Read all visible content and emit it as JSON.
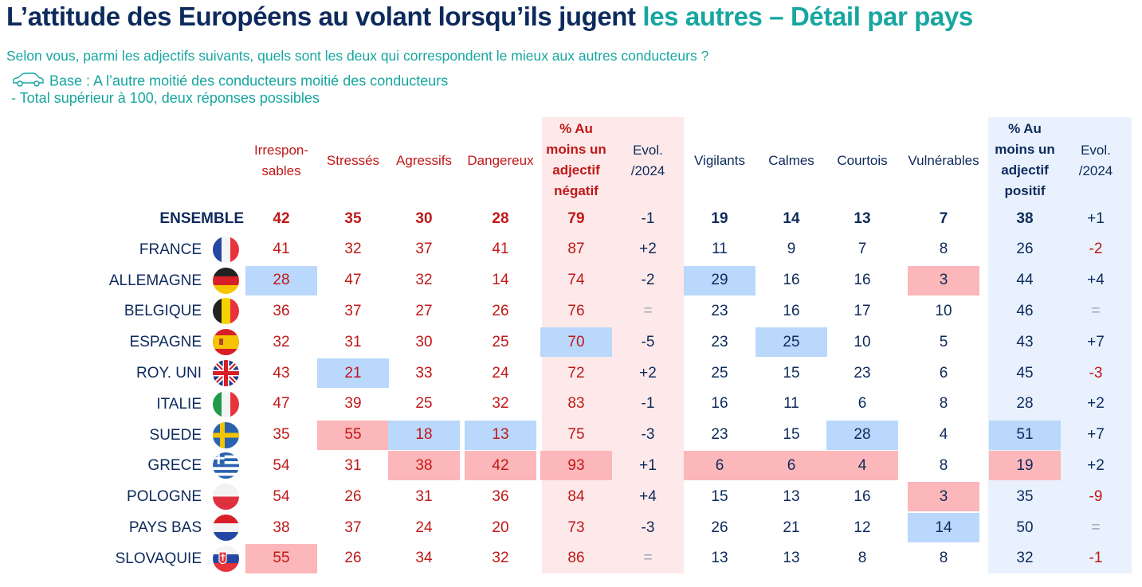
{
  "title": {
    "part1": "L’attitude des Européens au volant lorsqu’ils jugent ",
    "part2": "les autres – Détail par pays"
  },
  "subtitle": "Selon vous, parmi les adjectifs suivants, quels sont les deux qui correspondent le mieux aux autres conducteurs ?",
  "base": "Base : A l’autre moitié des conducteurs moitié des conducteurs",
  "note": "- Total supérieur à 100, deux réponses possibles",
  "colors": {
    "navy": "#0d2a5c",
    "teal": "#17a6a0",
    "red": "#c01818",
    "highlight_blue": "#b9d8fb",
    "highlight_red": "#fbb7b9"
  },
  "headers": {
    "h1": [
      "Irrespon-",
      "sables"
    ],
    "h2": [
      "Stressés"
    ],
    "h3": [
      "Agressifs"
    ],
    "h4": [
      "Dangereux"
    ],
    "h5": [
      "% Au",
      "moins un",
      "adjectif",
      "négatif"
    ],
    "h6": [
      "Evol.",
      "/2024"
    ],
    "h7": [
      "Vigilants"
    ],
    "h8": [
      "Calmes"
    ],
    "h9": [
      "Courtois"
    ],
    "h10": [
      "Vulnérables"
    ],
    "h11": [
      "% Au",
      "moins un",
      "adjectif",
      "positif"
    ],
    "h12": [
      "Evol.",
      "/2024"
    ]
  },
  "chart_data": {
    "type": "table",
    "columns": [
      "Irresponsables",
      "Stressés",
      "Agressifs",
      "Dangereux",
      "% Au moins un adjectif négatif",
      "Evol. /2024",
      "Vigilants",
      "Calmes",
      "Courtois",
      "Vulnérables",
      "% Au moins un adjectif positif",
      "Evol. /2024"
    ],
    "rows": [
      {
        "label": "ENSEMBLE",
        "flag": "",
        "values": [
          "42",
          "35",
          "30",
          "28",
          "79",
          "-1",
          "19",
          "14",
          "13",
          "7",
          "38",
          "+1"
        ]
      },
      {
        "label": "FRANCE",
        "flag": "france-flag-icon",
        "values": [
          "41",
          "32",
          "37",
          "41",
          "87",
          "+2",
          "11",
          "9",
          "7",
          "8",
          "26",
          "-2"
        ]
      },
      {
        "label": "ALLEMAGNE",
        "flag": "germany-flag-icon",
        "values": [
          "28",
          "47",
          "32",
          "14",
          "74",
          "-2",
          "29",
          "16",
          "16",
          "3",
          "44",
          "+4"
        ]
      },
      {
        "label": "BELGIQUE",
        "flag": "belgium-flag-icon",
        "values": [
          "36",
          "37",
          "27",
          "26",
          "76",
          "=",
          "23",
          "16",
          "17",
          "10",
          "46",
          "="
        ]
      },
      {
        "label": "ESPAGNE",
        "flag": "spain-flag-icon",
        "values": [
          "32",
          "31",
          "30",
          "25",
          "70",
          "-5",
          "23",
          "25",
          "10",
          "5",
          "43",
          "+7"
        ]
      },
      {
        "label": "ROY. UNI",
        "flag": "uk-flag-icon",
        "values": [
          "43",
          "21",
          "33",
          "24",
          "72",
          "+2",
          "25",
          "15",
          "23",
          "6",
          "45",
          "-3"
        ]
      },
      {
        "label": "ITALIE",
        "flag": "italy-flag-icon",
        "values": [
          "47",
          "39",
          "25",
          "32",
          "83",
          "-1",
          "16",
          "11",
          "6",
          "8",
          "28",
          "+2"
        ]
      },
      {
        "label": "SUEDE",
        "flag": "sweden-flag-icon",
        "values": [
          "35",
          "55",
          "18",
          "13",
          "75",
          "-3",
          "23",
          "15",
          "28",
          "4",
          "51",
          "+7"
        ]
      },
      {
        "label": "GRECE",
        "flag": "greece-flag-icon",
        "values": [
          "54",
          "31",
          "38",
          "42",
          "93",
          "+1",
          "6",
          "6",
          "4",
          "8",
          "19",
          "+2"
        ]
      },
      {
        "label": "POLOGNE",
        "flag": "poland-flag-icon",
        "values": [
          "54",
          "26",
          "31",
          "36",
          "84",
          "+4",
          "15",
          "13",
          "16",
          "3",
          "35",
          "-9"
        ]
      },
      {
        "label": "PAYS BAS",
        "flag": "netherlands-flag-icon",
        "values": [
          "38",
          "37",
          "24",
          "20",
          "73",
          "-3",
          "26",
          "21",
          "12",
          "14",
          "50",
          "="
        ]
      },
      {
        "label": "SLOVAQUIE",
        "flag": "slovakia-flag-icon",
        "values": [
          "55",
          "26",
          "34",
          "32",
          "86",
          "=",
          "13",
          "13",
          "8",
          "8",
          "32",
          "-1"
        ]
      }
    ],
    "highlights": [
      {
        "row": 2,
        "col": 0,
        "color": "blue"
      },
      {
        "row": 2,
        "col": 6,
        "color": "blue"
      },
      {
        "row": 2,
        "col": 9,
        "color": "red"
      },
      {
        "row": 4,
        "col": 4,
        "color": "blue"
      },
      {
        "row": 4,
        "col": 7,
        "color": "blue"
      },
      {
        "row": 5,
        "col": 1,
        "color": "blue"
      },
      {
        "row": 7,
        "col": 1,
        "color": "red"
      },
      {
        "row": 7,
        "col": 2,
        "color": "blue"
      },
      {
        "row": 7,
        "col": 3,
        "color": "blue"
      },
      {
        "row": 7,
        "col": 8,
        "color": "blue"
      },
      {
        "row": 7,
        "col": 10,
        "color": "blue"
      },
      {
        "row": 8,
        "col": 2,
        "color": "red"
      },
      {
        "row": 8,
        "col": 3,
        "color": "red"
      },
      {
        "row": 8,
        "col": 4,
        "color": "red"
      },
      {
        "row": 8,
        "col": 6,
        "color": "red"
      },
      {
        "row": 8,
        "col": 7,
        "color": "red"
      },
      {
        "row": 8,
        "col": 8,
        "color": "red"
      },
      {
        "row": 8,
        "col": 10,
        "color": "red"
      },
      {
        "row": 9,
        "col": 9,
        "color": "red"
      },
      {
        "row": 10,
        "col": 9,
        "color": "blue"
      },
      {
        "row": 11,
        "col": 0,
        "color": "red"
      }
    ]
  }
}
